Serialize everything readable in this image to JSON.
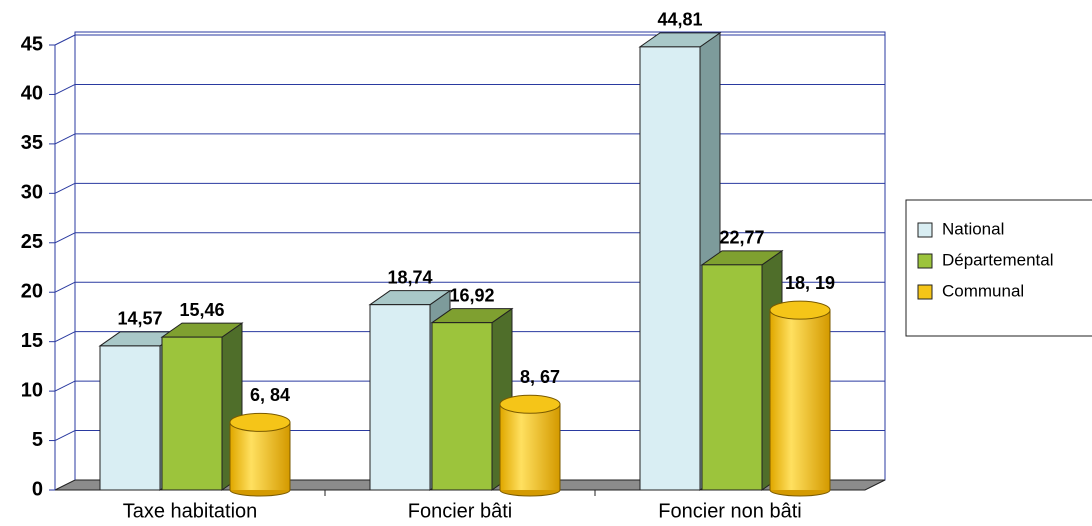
{
  "chart_data": {
    "type": "bar3d",
    "categories": [
      "Taxe habitation",
      "Foncier bâti",
      "Foncier non bâti"
    ],
    "series": [
      {
        "name": "National",
        "color": "#d9eef3",
        "values": [
          14.57,
          18.74,
          44.81
        ],
        "value_labels": [
          "14,57",
          "18,74",
          "44,81"
        ]
      },
      {
        "name": "Départemental",
        "color": "#9cc43c",
        "values": [
          15.46,
          16.92,
          22.77
        ],
        "value_labels": [
          "15,46",
          "16,92",
          "22,77"
        ]
      },
      {
        "name": "Communal",
        "color": "#f5c518",
        "values": [
          6.84,
          8.67,
          18.19
        ],
        "value_labels": [
          "6, 84",
          "8, 67",
          "18, 19"
        ]
      }
    ],
    "ylim": [
      0,
      45
    ],
    "yticks": [
      0,
      5,
      10,
      15,
      20,
      25,
      30,
      35,
      40,
      45
    ],
    "grid": true,
    "legend": "right"
  }
}
